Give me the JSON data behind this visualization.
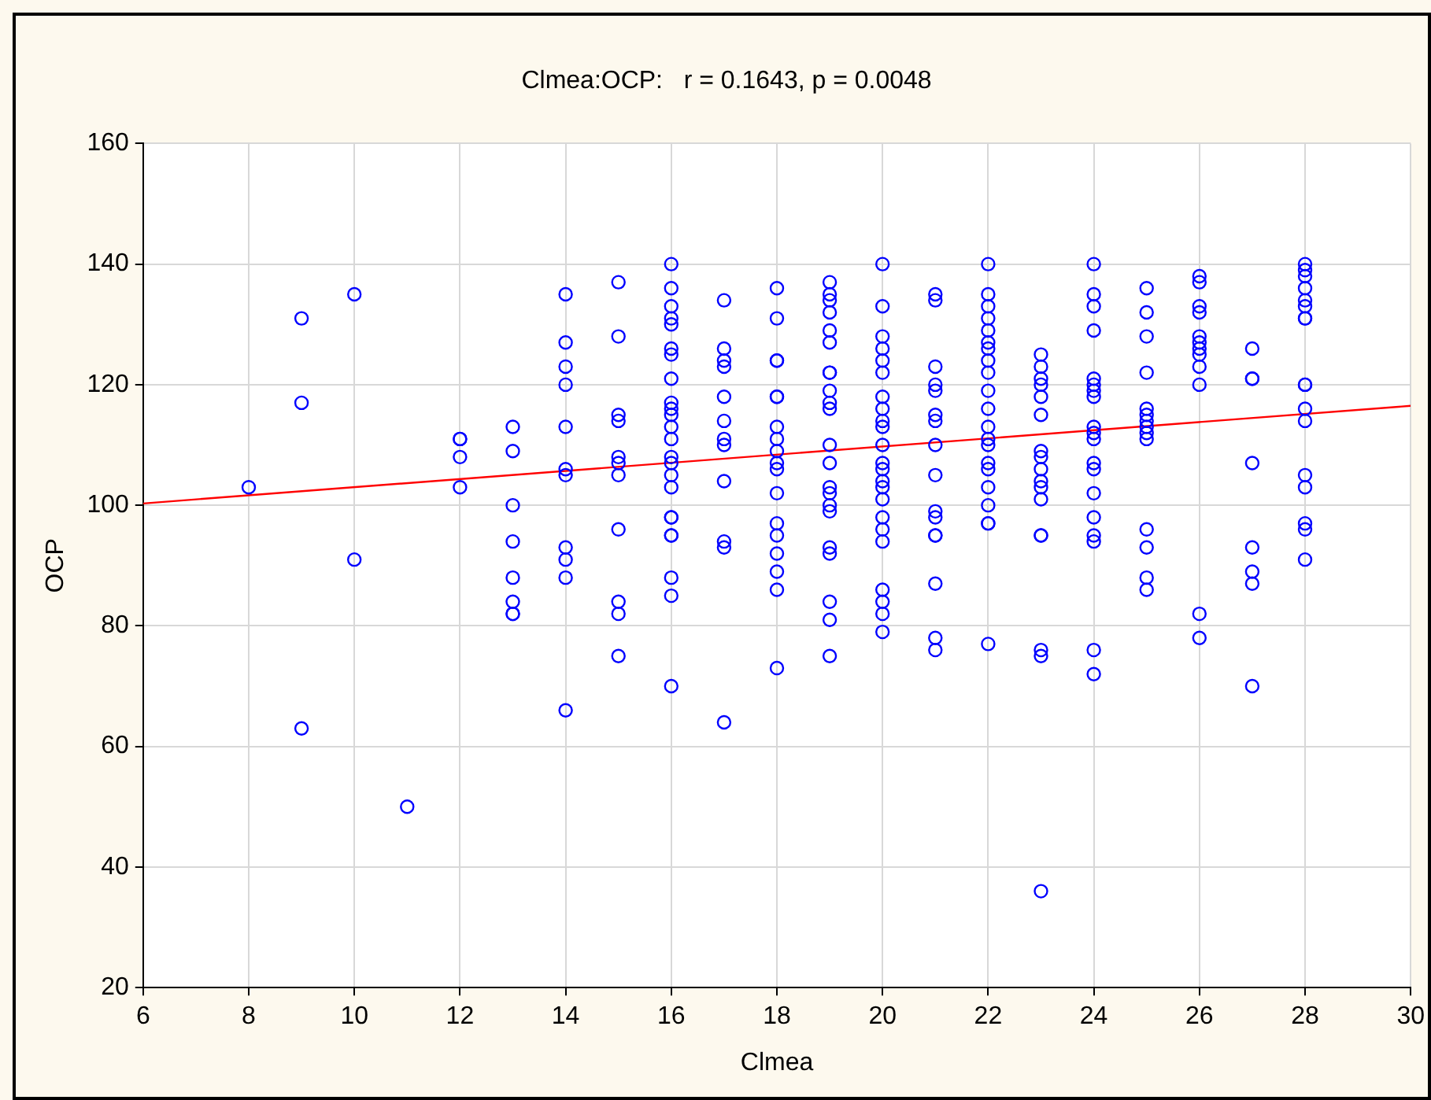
{
  "chart_data": {
    "type": "scatter",
    "title": "Clmea:OCP:   r = 0.1643, p = 0.0048",
    "xlabel": "Clmea",
    "ylabel": "OCP",
    "xlim": [
      6,
      30
    ],
    "xticks": [
      6,
      8,
      10,
      12,
      14,
      16,
      18,
      20,
      22,
      24,
      26,
      28,
      30
    ],
    "ylim": [
      20,
      160
    ],
    "yticks": [
      20,
      40,
      60,
      80,
      100,
      120,
      140,
      160
    ],
    "grid": true,
    "legend": false,
    "marker": "circle",
    "series": [
      {
        "color": "#0000ff",
        "x": [
          8,
          9,
          9,
          9,
          10,
          10,
          11,
          12,
          12,
          12,
          12,
          13,
          13,
          13,
          13,
          13,
          13,
          13,
          13,
          14,
          14,
          14,
          14,
          14,
          14,
          14,
          14,
          14,
          14,
          14,
          15,
          15,
          15,
          15,
          15,
          15,
          15,
          15,
          15,
          15,
          15,
          16,
          16,
          16,
          16,
          16,
          16,
          16,
          16,
          16,
          16,
          16,
          16,
          16,
          16,
          16,
          16,
          16,
          16,
          16,
          16,
          16,
          16,
          16,
          16,
          17,
          17,
          17,
          17,
          17,
          17,
          17,
          17,
          17,
          17,
          17,
          17,
          18,
          18,
          18,
          18,
          18,
          18,
          18,
          18,
          18,
          18,
          18,
          18,
          18,
          18,
          18,
          18,
          18,
          18,
          19,
          19,
          19,
          19,
          19,
          19,
          19,
          19,
          19,
          19,
          19,
          19,
          19,
          19,
          19,
          19,
          19,
          19,
          19,
          19,
          19,
          19,
          20,
          20,
          20,
          20,
          20,
          20,
          20,
          20,
          20,
          20,
          20,
          20,
          20,
          20,
          20,
          20,
          20,
          20,
          20,
          20,
          20,
          20,
          20,
          21,
          21,
          21,
          21,
          21,
          21,
          21,
          21,
          21,
          21,
          21,
          21,
          21,
          21,
          21,
          21,
          22,
          22,
          22,
          22,
          22,
          22,
          22,
          22,
          22,
          22,
          22,
          22,
          22,
          22,
          22,
          22,
          22,
          22,
          22,
          22,
          22,
          23,
          23,
          23,
          23,
          23,
          23,
          23,
          23,
          23,
          23,
          23,
          23,
          23,
          23,
          23,
          23,
          23,
          24,
          24,
          24,
          24,
          24,
          24,
          24,
          24,
          24,
          24,
          24,
          24,
          24,
          24,
          24,
          24,
          24,
          24,
          24,
          25,
          25,
          25,
          25,
          25,
          25,
          25,
          25,
          25,
          25,
          25,
          25,
          25,
          25,
          26,
          26,
          26,
          26,
          26,
          26,
          26,
          26,
          26,
          26,
          26,
          26,
          27,
          27,
          27,
          27,
          27,
          27,
          27,
          27,
          28,
          28,
          28,
          28,
          28,
          28,
          28,
          28,
          28,
          28,
          28,
          28,
          28,
          28,
          28,
          28,
          28
        ],
        "values": [
          103,
          131,
          117,
          63,
          135,
          91,
          50,
          111,
          111,
          108,
          103,
          113,
          109,
          100,
          94,
          88,
          84,
          82,
          82,
          135,
          127,
          123,
          120,
          113,
          106,
          105,
          93,
          91,
          88,
          66,
          137,
          128,
          115,
          114,
          108,
          107,
          105,
          96,
          84,
          82,
          75,
          140,
          136,
          133,
          131,
          130,
          126,
          125,
          121,
          117,
          116,
          115,
          113,
          111,
          108,
          107,
          105,
          103,
          98,
          98,
          95,
          95,
          88,
          85,
          70,
          134,
          126,
          124,
          123,
          118,
          114,
          111,
          110,
          104,
          94,
          93,
          64,
          136,
          131,
          124,
          124,
          118,
          118,
          113,
          111,
          109,
          107,
          106,
          102,
          97,
          95,
          92,
          89,
          86,
          73,
          137,
          135,
          134,
          132,
          129,
          127,
          122,
          122,
          119,
          117,
          116,
          110,
          107,
          103,
          102,
          100,
          99,
          93,
          92,
          84,
          81,
          75,
          140,
          133,
          128,
          126,
          124,
          122,
          118,
          116,
          114,
          113,
          110,
          107,
          106,
          104,
          103,
          101,
          98,
          96,
          94,
          86,
          84,
          82,
          79,
          135,
          134,
          123,
          120,
          119,
          115,
          114,
          110,
          105,
          99,
          98,
          95,
          95,
          87,
          78,
          76,
          140,
          135,
          133,
          131,
          129,
          127,
          126,
          124,
          122,
          119,
          116,
          113,
          111,
          110,
          107,
          106,
          103,
          100,
          97,
          97,
          77,
          125,
          123,
          121,
          120,
          118,
          115,
          109,
          108,
          106,
          104,
          103,
          101,
          95,
          95,
          76,
          75,
          36,
          140,
          135,
          133,
          129,
          121,
          120,
          119,
          118,
          113,
          112,
          111,
          107,
          106,
          102,
          98,
          95,
          94,
          76,
          72,
          136,
          132,
          128,
          122,
          116,
          115,
          114,
          113,
          112,
          111,
          96,
          93,
          88,
          86,
          138,
          137,
          133,
          132,
          128,
          127,
          126,
          125,
          123,
          120,
          82,
          78,
          126,
          121,
          121,
          107,
          93,
          89,
          87,
          70,
          140,
          139,
          138,
          136,
          134,
          133,
          131,
          131,
          120,
          120,
          116,
          114,
          105,
          103,
          97,
          96,
          91
        ]
      },
      {
        "type": "line",
        "marker": "none",
        "color": "#ff0000",
        "x": [
          6,
          30
        ],
        "values": [
          100.3,
          116.5
        ]
      }
    ]
  }
}
